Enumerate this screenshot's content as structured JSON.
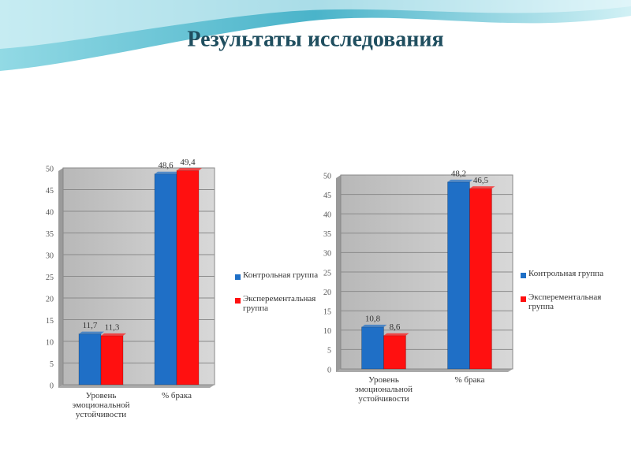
{
  "title": "Результаты исследования",
  "chart_data": [
    {
      "type": "bar",
      "categories": [
        "Уровень эмоциональной устойчивости",
        "% брака"
      ],
      "series": [
        {
          "name": "Контрольная группа",
          "color": "#1f6fc6",
          "values": [
            11.7,
            48.6
          ],
          "value_labels": [
            "11,7",
            "48,6"
          ]
        },
        {
          "name": "Эксперементальная группа",
          "color": "#ff1010",
          "values": [
            11.3,
            49.4
          ],
          "value_labels": [
            "11,3",
            "49,4"
          ]
        }
      ],
      "ylim": [
        0,
        50
      ],
      "yticks": [
        0,
        5,
        10,
        15,
        20,
        25,
        30,
        35,
        40,
        45,
        50
      ],
      "grid": true,
      "legend": "right"
    },
    {
      "type": "bar",
      "categories": [
        "Уровень эмоциональной устойчивости",
        "% брака"
      ],
      "series": [
        {
          "name": "Контрольная группа",
          "color": "#1f6fc6",
          "values": [
            10.8,
            48.2
          ],
          "value_labels": [
            "10,8",
            "48,2"
          ]
        },
        {
          "name": "Эксперементальная группа",
          "color": "#ff1010",
          "values": [
            8.6,
            46.5
          ],
          "value_labels": [
            "8,6",
            "46,5"
          ]
        }
      ],
      "ylim": [
        0,
        50
      ],
      "yticks": [
        0,
        5,
        10,
        15,
        20,
        25,
        30,
        35,
        40,
        45,
        50
      ],
      "grid": true,
      "legend": "right"
    }
  ]
}
